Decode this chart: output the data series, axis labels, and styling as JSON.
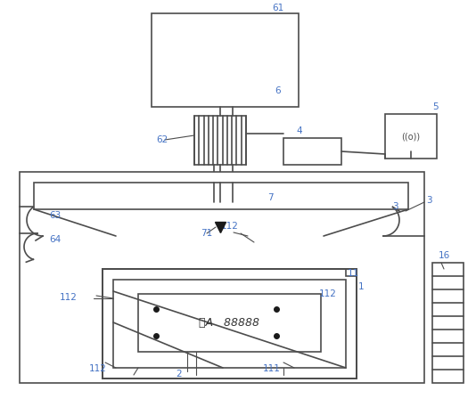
{
  "bg_color": "#ffffff",
  "line_color": "#4d4d4d",
  "label_color": "#4472c4",
  "line_width": 1.2,
  "font_size": 7.5,
  "fig_w": 5.34,
  "fig_h": 4.57,
  "dpi": 100
}
